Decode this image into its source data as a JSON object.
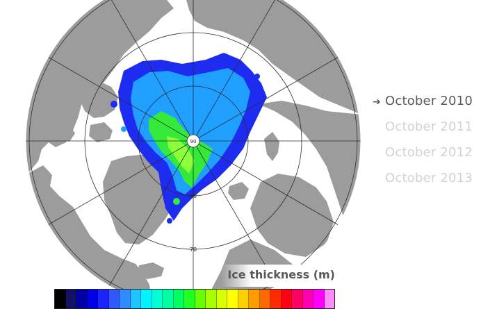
{
  "map": {
    "lat_labels": [
      "80",
      "70"
    ],
    "pole_marker": "90",
    "colors": {
      "land": "#9d9c9d",
      "ocean": "#ffffff",
      "grid": "#2b2b2b",
      "thin_ice": "#1e2cf0",
      "mid_ice": "#1f9fff",
      "thick_ice": "#35e93b"
    }
  },
  "months": [
    {
      "label": "October 2010",
      "selected": true
    },
    {
      "label": "October 2011",
      "selected": false
    },
    {
      "label": "October 2012",
      "selected": false
    },
    {
      "label": "October 2013",
      "selected": false
    }
  ],
  "legend": {
    "title": "Ice thickness (m)",
    "colors": [
      "#000000",
      "#111166",
      "#0000a6",
      "#0000e8",
      "#1a24ff",
      "#2f59ff",
      "#2f8cff",
      "#1ec4ff",
      "#00f4ff",
      "#00ffd4",
      "#00ffa0",
      "#00ff60",
      "#22ff22",
      "#6aff00",
      "#a7ff00",
      "#d9ff00",
      "#ffff00",
      "#ffd000",
      "#ff9d00",
      "#ff6900",
      "#ff2a00",
      "#ff0015",
      "#ff0064",
      "#ff00b0",
      "#ff00ff",
      "#ff8cff"
    ]
  }
}
